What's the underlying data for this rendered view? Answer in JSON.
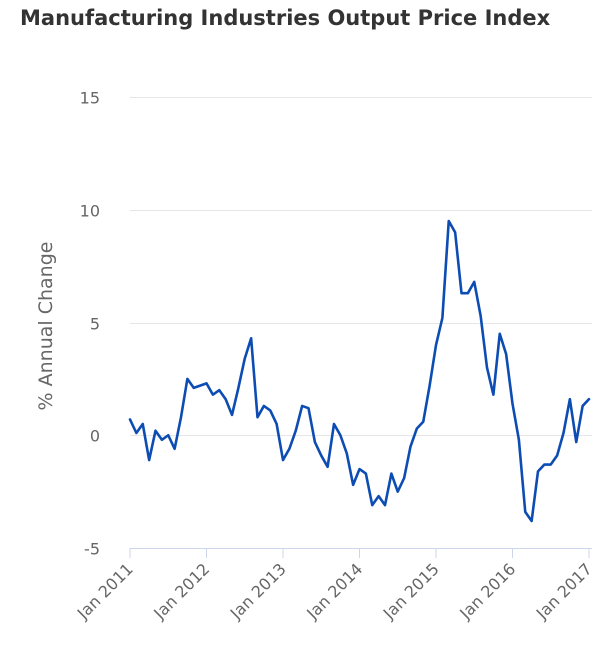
{
  "chart_data": {
    "type": "line",
    "title": "Manufacturing Industries Output Price Index",
    "ylabel": "% Annual Change",
    "xlabel": "",
    "ylim": [
      -5,
      15
    ],
    "yticks": [
      15,
      10,
      5,
      0,
      -5
    ],
    "xticks": [
      "Jan 2011",
      "Jan 2012",
      "Jan 2013",
      "Jan 2014",
      "Jan 2015",
      "Jan 2016",
      "Jan 2017"
    ],
    "grid": "horizontal",
    "color": "#0d4db3",
    "series": [
      {
        "x_start": "Jan 2011",
        "frequency": "monthly",
        "values": [
          0.7,
          0.1,
          0.5,
          -1.1,
          0.2,
          -0.2,
          0.0,
          -0.6,
          0.8,
          2.5,
          2.1,
          2.2,
          2.3,
          1.8,
          2.0,
          1.6,
          0.9,
          2.1,
          3.4,
          4.3,
          0.8,
          1.3,
          1.1,
          0.5,
          -1.1,
          -0.6,
          0.2,
          1.3,
          1.2,
          -0.3,
          -0.9,
          -1.4,
          0.5,
          0.0,
          -0.8,
          -2.2,
          -1.5,
          -1.7,
          -3.1,
          -2.7,
          -3.1,
          -1.7,
          -2.5,
          -1.9,
          -0.5,
          0.3,
          0.6,
          2.2,
          4.0,
          5.2,
          9.5,
          9.0,
          6.3,
          6.3,
          6.8,
          5.3,
          3.0,
          1.8,
          4.5,
          3.6,
          1.4,
          -0.2,
          -3.4,
          -3.8,
          -1.6,
          -1.3,
          -1.3,
          -0.9,
          0.1,
          1.6,
          -0.3,
          1.3,
          1.6
        ]
      }
    ]
  }
}
